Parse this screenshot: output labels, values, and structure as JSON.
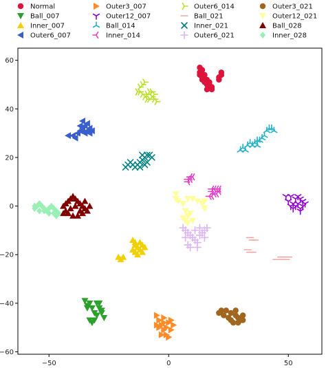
{
  "chart_data": {
    "type": "scatter",
    "title": "",
    "xlabel": "",
    "ylabel": "",
    "xlim": [
      -63,
      64
    ],
    "ylim": [
      -61,
      65
    ],
    "xticks": [
      -50,
      0,
      50
    ],
    "yticks": [
      -60,
      -40,
      -20,
      0,
      20,
      40,
      60
    ],
    "grid": false,
    "legend_position": "top",
    "series": [
      {
        "name": "Normal",
        "marker": "circle",
        "color": "#dc143c",
        "points": [
          [
            13,
            57
          ],
          [
            13,
            55
          ],
          [
            14,
            53
          ],
          [
            15,
            51
          ],
          [
            16,
            50
          ],
          [
            17,
            49
          ],
          [
            16,
            52
          ],
          [
            14,
            56
          ],
          [
            17,
            51
          ],
          [
            18,
            49
          ],
          [
            21,
            53
          ],
          [
            22,
            54
          ],
          [
            21,
            52
          ],
          [
            22,
            55
          ],
          [
            13,
            54
          ],
          [
            15,
            54
          ],
          [
            17,
            50
          ],
          [
            16,
            48
          ],
          [
            18,
            48
          ],
          [
            14,
            52
          ]
        ]
      },
      {
        "name": "Ball_007",
        "marker": "triangle_down",
        "color": "#2ca02c",
        "points": [
          [
            -35,
            -39
          ],
          [
            -34,
            -41
          ],
          [
            -33,
            -40
          ],
          [
            -32,
            -42
          ],
          [
            -30,
            -40
          ],
          [
            -29,
            -42
          ],
          [
            -28,
            -44
          ],
          [
            -27,
            -46
          ],
          [
            -30,
            -45
          ],
          [
            -31,
            -47
          ],
          [
            -32,
            -48
          ],
          [
            -31,
            -44
          ],
          [
            -29,
            -40
          ],
          [
            -28,
            -43
          ],
          [
            -33,
            -47
          ],
          [
            -34,
            -42
          ]
        ]
      },
      {
        "name": "Inner_007",
        "marker": "triangle_up",
        "color": "#f2d000",
        "points": [
          [
            -15,
            -14
          ],
          [
            -14,
            -16
          ],
          [
            -13,
            -17
          ],
          [
            -12,
            -18
          ],
          [
            -11,
            -19
          ],
          [
            -13,
            -20
          ],
          [
            -14,
            -19
          ],
          [
            -15,
            -18
          ],
          [
            -10,
            -17
          ],
          [
            -12,
            -15
          ],
          [
            -21,
            -21
          ],
          [
            -20,
            -22
          ],
          [
            -19,
            -21
          ],
          [
            -14,
            -15
          ],
          [
            -11,
            -16
          ]
        ]
      },
      {
        "name": "Outer6_007",
        "marker": "triangle_left",
        "color": "#3a5fcd",
        "points": [
          [
            -42,
            29
          ],
          [
            -40,
            29
          ],
          [
            -38,
            30
          ],
          [
            -37,
            31
          ],
          [
            -36,
            32
          ],
          [
            -35,
            33
          ],
          [
            -34,
            34
          ],
          [
            -33,
            32
          ],
          [
            -33,
            30
          ],
          [
            -35,
            30
          ],
          [
            -36,
            35
          ],
          [
            -37,
            33
          ],
          [
            -34,
            31
          ],
          [
            -39,
            28
          ],
          [
            -32,
            31
          ],
          [
            -36,
            31
          ]
        ]
      },
      {
        "name": "Outer3_007",
        "marker": "triangle_right",
        "color": "#ff8c28",
        "points": [
          [
            -5,
            -45
          ],
          [
            -4,
            -47
          ],
          [
            -3,
            -49
          ],
          [
            -2,
            -51
          ],
          [
            -1,
            -50
          ],
          [
            0,
            -48
          ],
          [
            1,
            -47
          ],
          [
            1,
            -51
          ],
          [
            -1,
            -53
          ],
          [
            -3,
            -53
          ],
          [
            -4,
            -50
          ],
          [
            -2,
            -46
          ],
          [
            0,
            -54
          ],
          [
            -5,
            -49
          ],
          [
            2,
            -49
          ],
          [
            -2,
            -48
          ]
        ]
      },
      {
        "name": "Outer12_007",
        "marker": "tri_down",
        "color": "#9400d3",
        "points": [
          [
            49,
            4
          ],
          [
            51,
            4
          ],
          [
            53,
            3
          ],
          [
            55,
            3
          ],
          [
            56,
            2
          ],
          [
            54,
            1
          ],
          [
            52,
            1
          ],
          [
            51,
            0
          ],
          [
            53,
            0
          ],
          [
            55,
            -1
          ],
          [
            56,
            0
          ],
          [
            55,
            -2
          ],
          [
            50,
            2
          ],
          [
            54,
            4
          ],
          [
            52,
            -1
          ],
          [
            57,
            1
          ]
        ]
      },
      {
        "name": "Ball_014",
        "marker": "tri_up",
        "color": "#21b0c8",
        "points": [
          [
            31,
            24
          ],
          [
            32,
            23
          ],
          [
            33,
            25
          ],
          [
            35,
            25
          ],
          [
            36,
            26
          ],
          [
            37,
            27
          ],
          [
            38,
            27
          ],
          [
            39,
            28
          ],
          [
            40,
            29
          ],
          [
            41,
            31
          ],
          [
            42,
            32
          ],
          [
            43,
            32
          ],
          [
            44,
            31
          ],
          [
            37,
            25
          ],
          [
            34,
            26
          ],
          [
            30,
            23
          ]
        ]
      },
      {
        "name": "Inner_014",
        "marker": "tri_left",
        "color": "#e040c8",
        "points": [
          [
            8,
            10
          ],
          [
            9,
            11
          ],
          [
            10,
            12
          ],
          [
            9,
            12
          ],
          [
            8,
            11
          ],
          [
            18,
            6
          ],
          [
            19,
            7
          ],
          [
            20,
            7
          ],
          [
            21,
            6
          ],
          [
            20,
            5
          ],
          [
            19,
            5
          ],
          [
            18,
            4
          ],
          [
            17,
            4
          ],
          [
            21,
            7
          ],
          [
            18,
            7
          ]
        ]
      },
      {
        "name": "Outer6_014",
        "marker": "tri_right",
        "color": "#b8e02a",
        "points": [
          [
            -10,
            51
          ],
          [
            -11,
            50
          ],
          [
            -12,
            49
          ],
          [
            -12,
            47
          ],
          [
            -11,
            46
          ],
          [
            -10,
            45
          ],
          [
            -9,
            44
          ],
          [
            -8,
            44
          ],
          [
            -7,
            45
          ],
          [
            -6,
            44
          ],
          [
            -5,
            43
          ],
          [
            -6,
            46
          ],
          [
            -8,
            47
          ],
          [
            -9,
            46
          ],
          [
            -7,
            47
          ],
          [
            -13,
            47
          ]
        ]
      },
      {
        "name": "Ball_021",
        "marker": "hline",
        "color": "#f4a6a6",
        "points": [
          [
            34,
            -13
          ],
          [
            35,
            -14
          ],
          [
            36,
            -14
          ],
          [
            33,
            -18
          ],
          [
            34,
            -19
          ],
          [
            35,
            -19
          ],
          [
            45,
            -22
          ],
          [
            46,
            -22
          ],
          [
            47,
            -21
          ],
          [
            48,
            -21
          ],
          [
            49,
            -22
          ],
          [
            50,
            -21
          ]
        ]
      },
      {
        "name": "Inner_021",
        "marker": "x",
        "color": "#008080",
        "points": [
          [
            -18,
            16
          ],
          [
            -17,
            17
          ],
          [
            -16,
            18
          ],
          [
            -15,
            17
          ],
          [
            -14,
            16
          ],
          [
            -13,
            17
          ],
          [
            -12,
            18
          ],
          [
            -11,
            19
          ],
          [
            -10,
            20
          ],
          [
            -9,
            21
          ],
          [
            -8,
            21
          ],
          [
            -7,
            20
          ],
          [
            -10,
            17
          ],
          [
            -12,
            16
          ],
          [
            -9,
            18
          ],
          [
            -11,
            21
          ]
        ]
      },
      {
        "name": "Outer6_021",
        "marker": "plus",
        "color": "#dcb4f0",
        "points": [
          [
            6,
            -9
          ],
          [
            7,
            -10
          ],
          [
            8,
            -11
          ],
          [
            9,
            -12
          ],
          [
            10,
            -13
          ],
          [
            11,
            -14
          ],
          [
            12,
            -15
          ],
          [
            13,
            -12
          ],
          [
            14,
            -11
          ],
          [
            15,
            -10
          ],
          [
            16,
            -9
          ],
          [
            13,
            -9
          ],
          [
            8,
            -16
          ],
          [
            9,
            -17
          ],
          [
            11,
            -10
          ],
          [
            15,
            -13
          ],
          [
            7,
            -13
          ],
          [
            12,
            -17
          ]
        ]
      },
      {
        "name": "Outer3_021",
        "marker": "circle",
        "color": "#a0661f",
        "points": [
          [
            22,
            -43
          ],
          [
            24,
            -43
          ],
          [
            26,
            -44
          ],
          [
            28,
            -45
          ],
          [
            29,
            -46
          ],
          [
            30,
            -47
          ],
          [
            31,
            -47
          ],
          [
            29,
            -48
          ],
          [
            27,
            -48
          ],
          [
            25,
            -46
          ],
          [
            23,
            -45
          ],
          [
            21,
            -44
          ],
          [
            28,
            -43
          ],
          [
            31,
            -45
          ],
          [
            26,
            -47
          ]
        ]
      },
      {
        "name": "Outer12_021",
        "marker": "triangle_down",
        "color": "#ffff9c",
        "points": [
          [
            3,
            5
          ],
          [
            3,
            3
          ],
          [
            4,
            2
          ],
          [
            6,
            1
          ],
          [
            8,
            3
          ],
          [
            10,
            3
          ],
          [
            12,
            2
          ],
          [
            14,
            1
          ],
          [
            15,
            2
          ],
          [
            15,
            -1
          ],
          [
            6,
            -5
          ],
          [
            7,
            -6
          ],
          [
            8,
            -4
          ],
          [
            9,
            -3
          ],
          [
            10,
            -6
          ],
          [
            8,
            -7
          ],
          [
            7,
            -2
          ]
        ]
      },
      {
        "name": "Ball_028",
        "marker": "triangle_up",
        "color": "#800000",
        "points": [
          [
            -44,
            0
          ],
          [
            -43,
            1
          ],
          [
            -42,
            2
          ],
          [
            -41,
            3
          ],
          [
            -40,
            4
          ],
          [
            -39,
            3
          ],
          [
            -38,
            2
          ],
          [
            -37,
            1
          ],
          [
            -36,
            0
          ],
          [
            -35,
            -1
          ],
          [
            -34,
            -2
          ],
          [
            -36,
            -3
          ],
          [
            -38,
            -4
          ],
          [
            -40,
            -4
          ],
          [
            -42,
            -3
          ],
          [
            -43,
            -2
          ],
          [
            -41,
            -1
          ],
          [
            -39,
            0
          ],
          [
            -37,
            -2
          ],
          [
            -35,
            2
          ],
          [
            -44,
            -3
          ],
          [
            -33,
            0
          ]
        ]
      },
      {
        "name": "Inner_028",
        "marker": "diamond",
        "color": "#98f0b4",
        "points": [
          [
            -56,
            -1
          ],
          [
            -55,
            0
          ],
          [
            -54,
            1
          ],
          [
            -53,
            0
          ],
          [
            -52,
            -1
          ],
          [
            -51,
            -2
          ],
          [
            -50,
            -1
          ],
          [
            -49,
            0
          ],
          [
            -48,
            -1
          ],
          [
            -47,
            -2
          ],
          [
            -46,
            -3
          ],
          [
            -47,
            -4
          ],
          [
            -48,
            -3
          ],
          [
            -50,
            -3
          ],
          [
            -52,
            -2
          ],
          [
            -54,
            -2
          ],
          [
            -56,
            0
          ]
        ]
      }
    ]
  }
}
